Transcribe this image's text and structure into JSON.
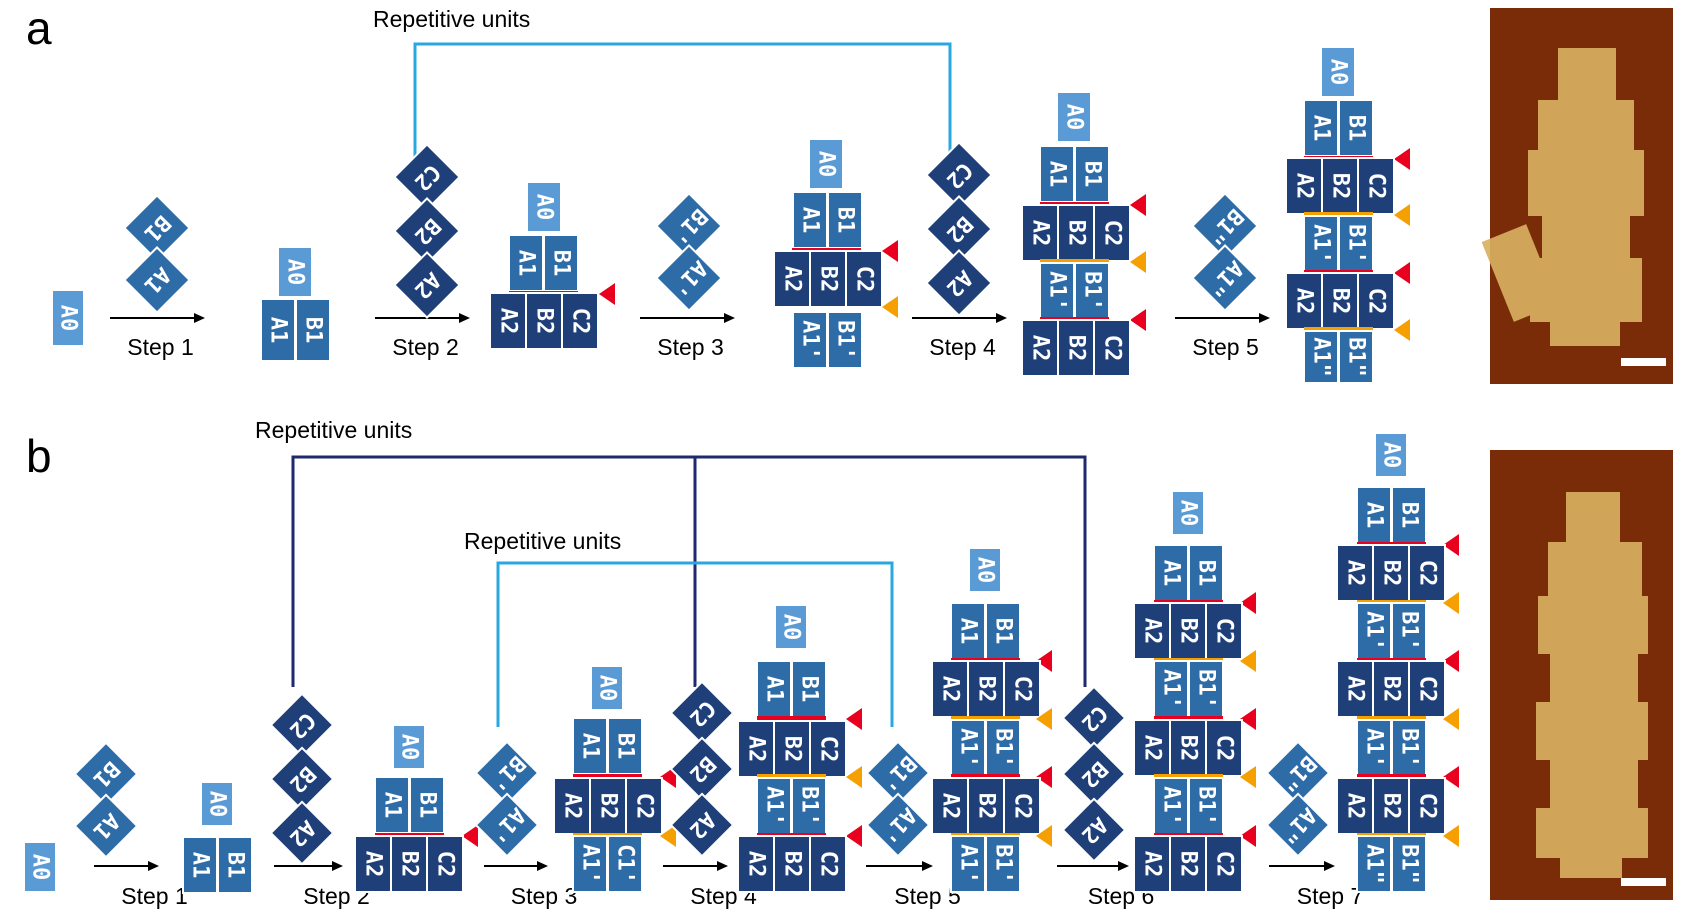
{
  "panels": [
    {
      "label": "a",
      "repeat_label": "Repetitive units",
      "steps": [
        "Step 1",
        "Step 2",
        "Step 3",
        "Step 4",
        "Step 5"
      ]
    },
    {
      "label": "b",
      "repeat_labels": [
        "Repetitive units",
        "Repetitive units"
      ],
      "steps": [
        "Step 1",
        "Step 2",
        "Step 3",
        "Step 4",
        "Step 5",
        "Step 6",
        "Step 7"
      ]
    }
  ],
  "tile_labels": {
    "a0": "A0",
    "a1": "A1",
    "b1": "B1",
    "a2": "A2",
    "b2": "B2",
    "c2": "C2",
    "a1p": "A1'",
    "b1p": "B1'",
    "c1p": "C1'",
    "a1pp": "A1\"",
    "b1pp": "B1\""
  },
  "colors": {
    "light_tile": "#5b9bd5",
    "mid_tile": "#2e6ca8",
    "dark_tile": "#1f3f79",
    "red_marker": "#e8001e",
    "orange_marker": "#f5a000",
    "bracket_light": "#29a8e0",
    "bracket_dark": "#1f2a6e",
    "afm_background": "#7a2c08",
    "afm_structure": "#d8b060"
  },
  "scale_bar": "white-bar"
}
